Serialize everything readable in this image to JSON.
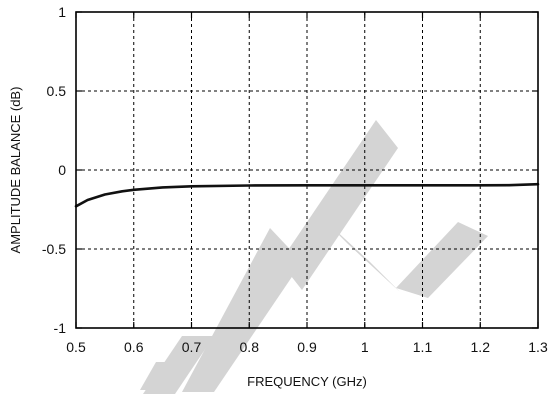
{
  "chart_data": {
    "type": "line",
    "title": "",
    "xlabel": "FREQUENCY (GHz)",
    "ylabel": "AMPLITUDE BALANCE (dB)",
    "xlim": [
      0.5,
      1.3
    ],
    "ylim": [
      -1,
      1
    ],
    "xticks": [
      "0.5",
      "0.6",
      "0.7",
      "0.8",
      "0.9",
      "1",
      "1.1",
      "1.2",
      "1.3"
    ],
    "yticks": [
      "1",
      "0.5",
      "0",
      "-0.5",
      "-1"
    ],
    "grid": true,
    "grid_style": "dashed",
    "series": [
      {
        "color": "#111111",
        "x": [
          0.5,
          0.52,
          0.55,
          0.58,
          0.6,
          0.65,
          0.7,
          0.8,
          0.9,
          1.0,
          1.1,
          1.2,
          1.25,
          1.3
        ],
        "y": [
          -0.23,
          -0.19,
          -0.155,
          -0.135,
          -0.125,
          -0.11,
          -0.103,
          -0.098,
          -0.097,
          -0.097,
          -0.097,
          -0.097,
          -0.096,
          -0.09
        ]
      }
    ],
    "watermark": {
      "description": "large light-gray diagonal letters (logo-like watermark)",
      "color": "#d4d4d4"
    }
  }
}
